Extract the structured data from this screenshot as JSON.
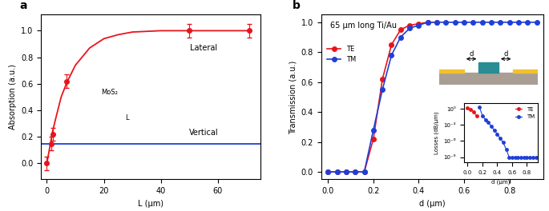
{
  "chart_data": [
    {
      "type": "scatter",
      "title": "a",
      "xlabel": "L (µm)",
      "ylabel": "Absorption (a.u.)",
      "xlim": [
        -2,
        75
      ],
      "xticks": [
        0,
        20,
        40,
        60
      ],
      "ylim": [
        -0.12,
        1.12
      ],
      "yticks": [
        {
          "value": 0.0,
          "label": "0.0"
        },
        {
          "value": 0.2,
          "label": "0.2"
        },
        {
          "value": 0.4,
          "label": "0.4"
        },
        {
          "value": 0.6,
          "label": "0.6"
        },
        {
          "value": 0.8,
          "label": "0.8"
        },
        {
          "value": 1.0,
          "label": "1.0"
        }
      ],
      "series": [
        {
          "name": "Lateral",
          "type": "scatter",
          "color": "#e8141c",
          "marker": "o",
          "x": [
            0,
            1.5,
            2,
            7,
            50,
            71
          ],
          "values": [
            0.0,
            0.15,
            0.22,
            0.62,
            1.0,
            1.0
          ],
          "error": [
            0.05,
            0.05,
            0.05,
            0.05,
            0.05,
            0.05
          ],
          "fit_x": [
            0,
            1,
            2,
            3,
            5,
            7,
            10,
            15,
            20,
            25,
            30,
            40,
            50,
            60,
            71
          ],
          "fit_values": [
            0.0,
            0.12,
            0.24,
            0.33,
            0.5,
            0.61,
            0.74,
            0.87,
            0.94,
            0.97,
            0.99,
            1.0,
            1.0,
            1.0,
            1.0
          ]
        },
        {
          "name": "Vertical",
          "type": "line",
          "color": "#1f3fd6",
          "x": [
            -2,
            75
          ],
          "values": [
            0.15,
            0.15
          ]
        }
      ],
      "annotations": [
        "MoS₂",
        "L"
      ]
    },
    {
      "type": "line",
      "title": "b",
      "subtitle": "65 µm long Ti/Au",
      "xlabel": "d (µm)",
      "ylabel": "Transmission (a.u.)",
      "xlim": [
        -0.03,
        0.95
      ],
      "xticks": [
        {
          "value": 0.0,
          "label": "0.0"
        },
        {
          "value": 0.2,
          "label": "0.2"
        },
        {
          "value": 0.4,
          "label": "0.4"
        },
        {
          "value": 0.6,
          "label": "0.6"
        },
        {
          "value": 0.8,
          "label": "0.8"
        }
      ],
      "ylim": [
        -0.05,
        1.05
      ],
      "yticks": [
        {
          "value": 0.0,
          "label": "0.0"
        },
        {
          "value": 0.2,
          "label": "0.2"
        },
        {
          "value": 0.4,
          "label": "0.4"
        },
        {
          "value": 0.6,
          "label": "0.6"
        },
        {
          "value": 0.8,
          "label": "0.8"
        },
        {
          "value": 1.0,
          "label": "1.0"
        }
      ],
      "legend": "upper left",
      "series": [
        {
          "name": "TE",
          "color": "#e8141c",
          "marker": "o",
          "x": [
            0.0,
            0.04,
            0.08,
            0.12,
            0.16,
            0.2,
            0.24,
            0.28,
            0.32,
            0.36,
            0.4,
            0.44,
            0.48
          ],
          "values": [
            0.0,
            0.0,
            0.0,
            0.0,
            0.0,
            0.22,
            0.62,
            0.85,
            0.95,
            0.98,
            0.99,
            1.0,
            1.0
          ]
        },
        {
          "name": "TM",
          "color": "#1f3fd6",
          "marker": "o",
          "x": [
            0.0,
            0.04,
            0.08,
            0.12,
            0.16,
            0.2,
            0.24,
            0.28,
            0.32,
            0.36,
            0.4,
            0.44,
            0.48,
            0.52,
            0.56,
            0.6,
            0.64,
            0.68,
            0.72,
            0.76,
            0.8,
            0.84,
            0.88,
            0.92
          ],
          "values": [
            0.0,
            0.0,
            0.0,
            0.0,
            0.0,
            0.28,
            0.55,
            0.78,
            0.9,
            0.96,
            0.98,
            1.0,
            1.0,
            1.0,
            1.0,
            1.0,
            1.0,
            1.0,
            1.0,
            1.0,
            1.0,
            1.0,
            1.0,
            1.0
          ]
        }
      ],
      "schematic_labels": [
        "d",
        "d"
      ],
      "inset": {
        "type": "line",
        "xlabel": "d (µm)",
        "ylabel": "Losses (dB/µm)",
        "log": "y",
        "xlim": [
          -0.05,
          0.95
        ],
        "xticks": [
          {
            "value": 0.0,
            "label": "0.0"
          },
          {
            "value": 0.2,
            "label": "0.2"
          },
          {
            "value": 0.4,
            "label": "0.4"
          },
          {
            "value": 0.6,
            "label": "0.6"
          },
          {
            "value": 0.8,
            "label": "0.8"
          }
        ],
        "ylim": [
          1e-10,
          10
        ],
        "yticks": [
          {
            "value": 1e-09,
            "label": "10⁻⁹"
          },
          {
            "value": 1e-06,
            "label": "10⁻⁶"
          },
          {
            "value": 0.001,
            "label": "10⁻³"
          },
          {
            "value": 1,
            "label": "10⁰"
          }
        ],
        "legend": "upper right",
        "series": [
          {
            "name": "TE",
            "color": "#e8141c",
            "marker": "o",
            "x": [
              0.0,
              0.04,
              0.08,
              0.12
            ],
            "values": [
              1.5,
              0.8,
              0.3,
              0.05
            ]
          },
          {
            "name": "TM",
            "color": "#1f3fd6",
            "marker": "o",
            "x": [
              0.16,
              0.2,
              0.24,
              0.28,
              0.32,
              0.36,
              0.4,
              0.44,
              0.48,
              0.52,
              0.56,
              0.6,
              0.64,
              0.68,
              0.72,
              0.76,
              0.8,
              0.84,
              0.88,
              0.92
            ],
            "values": [
              2.0,
              0.05,
              0.01,
              0.003,
              0.0005,
              0.0001,
              2e-05,
              3e-06,
              5e-07,
              3e-08,
              1e-09,
              1e-09,
              1e-09,
              1e-09,
              1e-09,
              1e-09,
              1e-09,
              1e-09,
              1e-09,
              1e-09
            ]
          }
        ]
      }
    }
  ]
}
